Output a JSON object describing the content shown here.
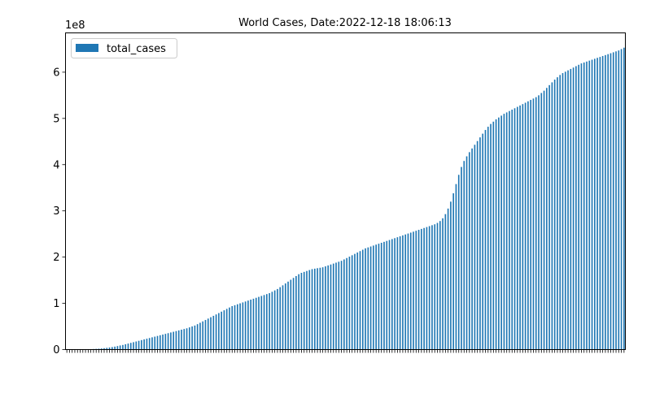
{
  "chart_data": {
    "type": "bar",
    "title": "World Cases, Date:2022-12-18 18:06:13",
    "xlabel": "",
    "ylabel": "",
    "y_offset_label": "1e8",
    "y_scale": 100000000,
    "ylim": [
      0,
      6.85
    ],
    "yticks": [
      0,
      1,
      2,
      3,
      4,
      5,
      6
    ],
    "grid": false,
    "legend_position": "upper-left",
    "bar_color": "#1f77b4",
    "series": [
      {
        "name": "total_cases",
        "values": [
          0.0006,
          0.0008,
          0.0012,
          0.0017,
          0.0024,
          0.0033,
          0.0044,
          0.0056,
          0.007,
          0.009,
          0.012,
          0.015,
          0.019,
          0.024,
          0.03,
          0.037,
          0.045,
          0.054,
          0.064,
          0.076,
          0.089,
          0.1,
          0.115,
          0.13,
          0.145,
          0.16,
          0.175,
          0.19,
          0.205,
          0.22,
          0.235,
          0.25,
          0.265,
          0.28,
          0.295,
          0.31,
          0.325,
          0.34,
          0.355,
          0.37,
          0.385,
          0.4,
          0.415,
          0.43,
          0.445,
          0.46,
          0.48,
          0.5,
          0.52,
          0.55,
          0.58,
          0.61,
          0.64,
          0.67,
          0.7,
          0.73,
          0.76,
          0.79,
          0.82,
          0.85,
          0.88,
          0.91,
          0.94,
          0.96,
          0.98,
          1.0,
          1.02,
          1.04,
          1.06,
          1.08,
          1.1,
          1.12,
          1.14,
          1.16,
          1.18,
          1.2,
          1.22,
          1.25,
          1.28,
          1.31,
          1.35,
          1.39,
          1.43,
          1.47,
          1.51,
          1.55,
          1.59,
          1.63,
          1.66,
          1.68,
          1.7,
          1.72,
          1.74,
          1.75,
          1.76,
          1.77,
          1.78,
          1.8,
          1.82,
          1.84,
          1.86,
          1.88,
          1.9,
          1.92,
          1.95,
          1.98,
          2.01,
          2.04,
          2.07,
          2.1,
          2.13,
          2.16,
          2.19,
          2.21,
          2.23,
          2.25,
          2.27,
          2.29,
          2.31,
          2.33,
          2.35,
          2.37,
          2.39,
          2.41,
          2.43,
          2.45,
          2.47,
          2.49,
          2.51,
          2.53,
          2.55,
          2.57,
          2.59,
          2.61,
          2.63,
          2.65,
          2.67,
          2.69,
          2.71,
          2.74,
          2.78,
          2.84,
          2.93,
          3.05,
          3.2,
          3.38,
          3.58,
          3.78,
          3.95,
          4.08,
          4.18,
          4.27,
          4.35,
          4.43,
          4.51,
          4.59,
          4.67,
          4.75,
          4.82,
          4.88,
          4.93,
          4.98,
          5.02,
          5.06,
          5.1,
          5.13,
          5.16,
          5.19,
          5.22,
          5.25,
          5.28,
          5.31,
          5.34,
          5.37,
          5.4,
          5.43,
          5.46,
          5.5,
          5.55,
          5.6,
          5.66,
          5.72,
          5.78,
          5.84,
          5.89,
          5.94,
          5.98,
          6.01,
          6.04,
          6.07,
          6.1,
          6.13,
          6.16,
          6.19,
          6.21,
          6.23,
          6.25,
          6.27,
          6.29,
          6.31,
          6.33,
          6.35,
          6.37,
          6.39,
          6.41,
          6.43,
          6.45,
          6.47,
          6.5,
          6.53
        ]
      }
    ]
  }
}
